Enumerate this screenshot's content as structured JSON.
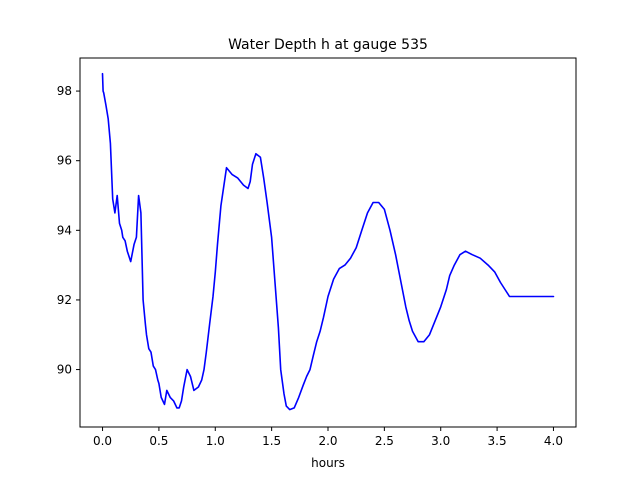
{
  "chart_data": {
    "type": "line",
    "title": "Water Depth h at gauge 535",
    "xlabel": "hours",
    "ylabel": "",
    "xlim": [
      -0.2,
      4.2
    ],
    "ylim": [
      88.35,
      98.95
    ],
    "xticks": [
      0.0,
      0.5,
      1.0,
      1.5,
      2.0,
      2.5,
      3.0,
      3.5,
      4.0
    ],
    "xtick_labels": [
      "0.0",
      "0.5",
      "1.0",
      "1.5",
      "2.0",
      "2.5",
      "3.0",
      "3.5",
      "4.0"
    ],
    "yticks": [
      90,
      92,
      94,
      96,
      98
    ],
    "ytick_labels": [
      "90",
      "92",
      "94",
      "96",
      "98"
    ],
    "grid": false,
    "series": [
      {
        "color": "#0000ff",
        "x": [
          0.0,
          0.005,
          0.01,
          0.03,
          0.05,
          0.07,
          0.09,
          0.11,
          0.13,
          0.15,
          0.17,
          0.18,
          0.2,
          0.22,
          0.25,
          0.28,
          0.3,
          0.32,
          0.34,
          0.36,
          0.38,
          0.39,
          0.41,
          0.43,
          0.45,
          0.47,
          0.49,
          0.5,
          0.52,
          0.55,
          0.57,
          0.6,
          0.63,
          0.66,
          0.68,
          0.7,
          0.72,
          0.75,
          0.78,
          0.81,
          0.85,
          0.88,
          0.9,
          0.92,
          0.95,
          0.98,
          1.0,
          1.02,
          1.05,
          1.1,
          1.15,
          1.2,
          1.25,
          1.29,
          1.31,
          1.33,
          1.36,
          1.4,
          1.43,
          1.46,
          1.5,
          1.53,
          1.56,
          1.58,
          1.61,
          1.63,
          1.66,
          1.7,
          1.74,
          1.78,
          1.81,
          1.84,
          1.87,
          1.9,
          1.93,
          1.96,
          2.0,
          2.05,
          2.1,
          2.15,
          2.2,
          2.25,
          2.3,
          2.35,
          2.4,
          2.45,
          2.5,
          2.55,
          2.6,
          2.63,
          2.66,
          2.69,
          2.72,
          2.75,
          2.8,
          2.85,
          2.9,
          2.95,
          3.0,
          3.05,
          3.08,
          3.12,
          3.17,
          3.22,
          3.28,
          3.35,
          3.42,
          3.48,
          3.53,
          3.57,
          3.61,
          3.65,
          3.7,
          3.75,
          3.8,
          3.85,
          3.9,
          3.95,
          4.0
        ],
        "values": [
          98.5,
          98.0,
          97.95,
          97.6,
          97.2,
          96.5,
          94.9,
          94.5,
          95.0,
          94.2,
          94.0,
          93.8,
          93.7,
          93.4,
          93.1,
          93.6,
          93.8,
          95.0,
          94.5,
          92.0,
          91.3,
          91.0,
          90.6,
          90.5,
          90.1,
          90.0,
          89.7,
          89.6,
          89.2,
          89.0,
          89.4,
          89.2,
          89.1,
          88.9,
          88.9,
          89.1,
          89.5,
          90.0,
          89.8,
          89.4,
          89.5,
          89.7,
          90.0,
          90.5,
          91.3,
          92.1,
          92.8,
          93.6,
          94.7,
          95.8,
          95.6,
          95.5,
          95.3,
          95.2,
          95.4,
          95.9,
          96.2,
          96.1,
          95.5,
          94.8,
          93.8,
          92.5,
          91.2,
          90.0,
          89.3,
          88.95,
          88.85,
          88.9,
          89.2,
          89.55,
          89.8,
          90.0,
          90.4,
          90.8,
          91.1,
          91.5,
          92.1,
          92.6,
          92.9,
          93.0,
          93.2,
          93.5,
          94.0,
          94.5,
          94.8,
          94.8,
          94.6,
          94.0,
          93.3,
          92.8,
          92.3,
          91.8,
          91.4,
          91.1,
          90.8,
          90.8,
          91.0,
          91.4,
          91.8,
          92.3,
          92.7,
          93.0,
          93.3,
          93.4,
          93.3,
          93.2,
          93.0,
          92.8,
          92.5,
          92.3,
          92.1,
          92.1,
          92.1,
          92.1,
          92.1,
          92.1,
          92.1,
          92.1,
          92.1
        ]
      }
    ]
  }
}
